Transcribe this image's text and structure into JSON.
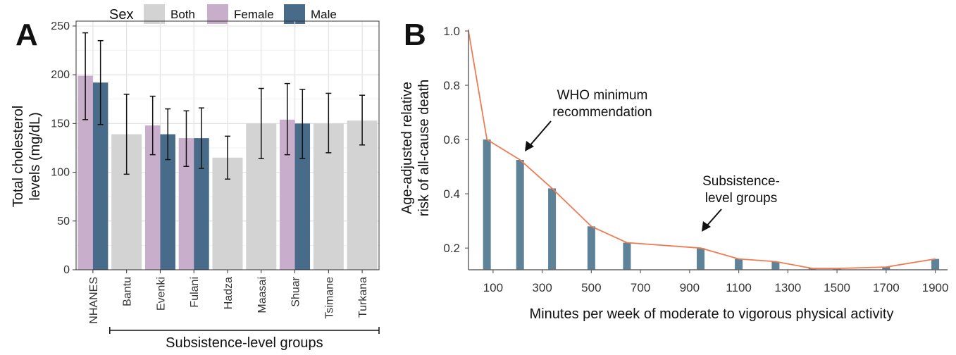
{
  "panel_a": {
    "letter": "A"
  },
  "panel_b": {
    "letter": "B"
  },
  "colors": {
    "Both": "#d3d3d3",
    "Female": "#c8aecb",
    "Male": "#476b89",
    "bar_b": "#5e8297",
    "line_b": "#f07b52",
    "grid": "#e3e3e3"
  },
  "chart_data": [
    {
      "type": "bar",
      "panel": "A",
      "ylabel": "Total cholesterol levels (mg/dL)",
      "ylabel_lines": [
        "Total cholesterol",
        "levels (mg/dL)"
      ],
      "xlabel": "Subsistence-level groups",
      "xlabel_bracket_from": "Bantu",
      "xlabel_bracket_to": "Turkana",
      "ylim": [
        0,
        255
      ],
      "yticks": [
        0,
        50,
        100,
        150,
        200,
        250
      ],
      "grid": true,
      "legend": {
        "title": "Sex",
        "position": "top",
        "entries": [
          "Both",
          "Female",
          "Male"
        ]
      },
      "categories": [
        "NHANES",
        "Bantu",
        "Evenki",
        "Fulani",
        "Hadza",
        "Maasai",
        "Shuar",
        "Tsimane",
        "Turkana"
      ],
      "bars": [
        {
          "category": "NHANES",
          "sex": "Female",
          "value": 199,
          "err_low": 154,
          "err_high": 243
        },
        {
          "category": "NHANES",
          "sex": "Male",
          "value": 192,
          "err_low": 149,
          "err_high": 235
        },
        {
          "category": "Bantu",
          "sex": "Both",
          "value": 139,
          "err_low": 98,
          "err_high": 180
        },
        {
          "category": "Evenki",
          "sex": "Female",
          "value": 148,
          "err_low": 118,
          "err_high": 178
        },
        {
          "category": "Evenki",
          "sex": "Male",
          "value": 139,
          "err_low": 113,
          "err_high": 165
        },
        {
          "category": "Fulani",
          "sex": "Female",
          "value": 135,
          "err_low": 106,
          "err_high": 163
        },
        {
          "category": "Fulani",
          "sex": "Male",
          "value": 135,
          "err_low": 104,
          "err_high": 166
        },
        {
          "category": "Hadza",
          "sex": "Both",
          "value": 115,
          "err_low": 93,
          "err_high": 137
        },
        {
          "category": "Maasai",
          "sex": "Both",
          "value": 150,
          "err_low": 114,
          "err_high": 186
        },
        {
          "category": "Shuar",
          "sex": "Female",
          "value": 154,
          "err_low": 118,
          "err_high": 191
        },
        {
          "category": "Shuar",
          "sex": "Male",
          "value": 150,
          "err_low": 114,
          "err_high": 185
        },
        {
          "category": "Tsimane",
          "sex": "Both",
          "value": 150,
          "err_low": 120,
          "err_high": 181
        },
        {
          "category": "Turkana",
          "sex": "Both",
          "value": 153,
          "err_low": 128,
          "err_high": 179
        }
      ]
    },
    {
      "type": "line",
      "panel": "B",
      "ylabel": "Age-adjusted relative risk of all-cause death",
      "ylabel_lines": [
        "Age-adjusted relative",
        "risk of all-cause death"
      ],
      "xlabel": "Minutes per week of moderate to vigorous physical activity",
      "xlim": [
        0,
        1950
      ],
      "ylim": [
        0.12,
        1.0
      ],
      "xticks": [
        100,
        300,
        500,
        700,
        900,
        1100,
        1300,
        1500,
        1700,
        1900
      ],
      "yticks": [
        0.2,
        0.4,
        0.6,
        0.8,
        1.0
      ],
      "yticklabels": [
        "0.2",
        "0.4",
        "0.6",
        "0.8",
        "1.0"
      ],
      "grid": false,
      "series": [
        {
          "x": [
            0,
            75,
            210,
            340,
            500,
            645,
            945,
            1100,
            1250,
            1400,
            1500,
            1700,
            1900
          ],
          "y": [
            1.0,
            0.6,
            0.525,
            0.42,
            0.28,
            0.22,
            0.2,
            0.16,
            0.15,
            0.125,
            0.125,
            0.13,
            0.16
          ]
        }
      ],
      "bars": [
        {
          "x": 75,
          "y": 0.6
        },
        {
          "x": 210,
          "y": 0.525
        },
        {
          "x": 340,
          "y": 0.42
        },
        {
          "x": 500,
          "y": 0.28
        },
        {
          "x": 645,
          "y": 0.22
        },
        {
          "x": 945,
          "y": 0.2
        },
        {
          "x": 1100,
          "y": 0.16
        },
        {
          "x": 1250,
          "y": 0.15
        },
        {
          "x": 1400,
          "y": 0.125
        },
        {
          "x": 1500,
          "y": 0.125
        },
        {
          "x": 1700,
          "y": 0.13
        },
        {
          "x": 1900,
          "y": 0.16
        }
      ],
      "annotations": [
        {
          "lines": [
            "WHO minimum",
            "recommendation"
          ],
          "target_x": 210,
          "target_y": 0.525
        },
        {
          "lines": [
            "Subsistence-",
            "level groups"
          ],
          "target_x": 945,
          "target_y": 0.2
        }
      ]
    }
  ]
}
